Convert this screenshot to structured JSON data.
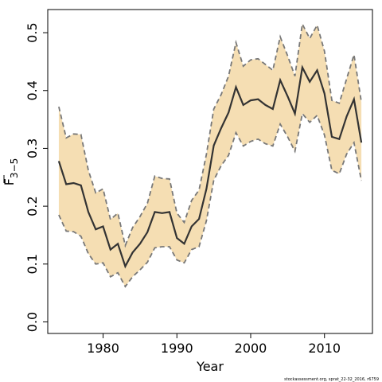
{
  "chart_data": {
    "type": "line",
    "xlabel": "Year",
    "ylabel_main": "F",
    "ylabel_sub": "3−5",
    "xlim": [
      1972.5,
      2016.5
    ],
    "ylim": [
      -0.02,
      0.54
    ],
    "xticks": [
      1980,
      1990,
      2000,
      2010
    ],
    "xtick_labels": [
      "1980",
      "1990",
      "2000",
      "2010"
    ],
    "yticks": [
      0.0,
      0.1,
      0.2,
      0.3,
      0.4,
      0.5
    ],
    "ytick_labels": [
      "0.0",
      "0.1",
      "0.2",
      "0.3",
      "0.4",
      "0.5"
    ],
    "grid": false,
    "colors": {
      "band_fill": "#f5deb3",
      "ci_line": "#787878",
      "estimate_line": "#333333",
      "axis": "#000000"
    },
    "x": [
      1974,
      1975,
      1976,
      1977,
      1978,
      1979,
      1980,
      1981,
      1982,
      1983,
      1984,
      1985,
      1986,
      1987,
      1988,
      1989,
      1990,
      1991,
      1992,
      1993,
      1994,
      1995,
      1996,
      1997,
      1998,
      1999,
      2000,
      2001,
      2002,
      2003,
      2004,
      2005,
      2006,
      2007,
      2008,
      2009,
      2010,
      2011,
      2012,
      2013,
      2014,
      2015
    ],
    "series": [
      {
        "role": "estimate",
        "values": [
          0.278,
          0.238,
          0.24,
          0.236,
          0.19,
          0.16,
          0.165,
          0.125,
          0.135,
          0.096,
          0.12,
          0.135,
          0.155,
          0.19,
          0.188,
          0.19,
          0.145,
          0.135,
          0.165,
          0.178,
          0.23,
          0.305,
          0.335,
          0.362,
          0.406,
          0.375,
          0.383,
          0.385,
          0.375,
          0.368,
          0.418,
          0.39,
          0.36,
          0.44,
          0.415,
          0.435,
          0.395,
          0.32,
          0.316,
          0.355,
          0.385,
          0.31
        ]
      },
      {
        "role": "upper",
        "values": [
          0.372,
          0.318,
          0.325,
          0.324,
          0.262,
          0.223,
          0.23,
          0.177,
          0.188,
          0.132,
          0.163,
          0.182,
          0.205,
          0.252,
          0.248,
          0.247,
          0.188,
          0.172,
          0.21,
          0.228,
          0.29,
          0.368,
          0.393,
          0.425,
          0.483,
          0.442,
          0.453,
          0.455,
          0.445,
          0.435,
          0.493,
          0.46,
          0.425,
          0.515,
          0.49,
          0.513,
          0.468,
          0.383,
          0.378,
          0.42,
          0.462,
          0.38
        ]
      },
      {
        "role": "lower",
        "values": [
          0.185,
          0.157,
          0.156,
          0.148,
          0.118,
          0.1,
          0.102,
          0.078,
          0.085,
          0.061,
          0.078,
          0.09,
          0.103,
          0.128,
          0.13,
          0.13,
          0.107,
          0.102,
          0.125,
          0.13,
          0.175,
          0.245,
          0.27,
          0.288,
          0.327,
          0.304,
          0.312,
          0.316,
          0.308,
          0.304,
          0.342,
          0.32,
          0.295,
          0.36,
          0.345,
          0.357,
          0.323,
          0.262,
          0.256,
          0.29,
          0.31,
          0.244
        ]
      }
    ]
  },
  "footer": "stockassessment.org, sprat_22-32_2016, r6759"
}
